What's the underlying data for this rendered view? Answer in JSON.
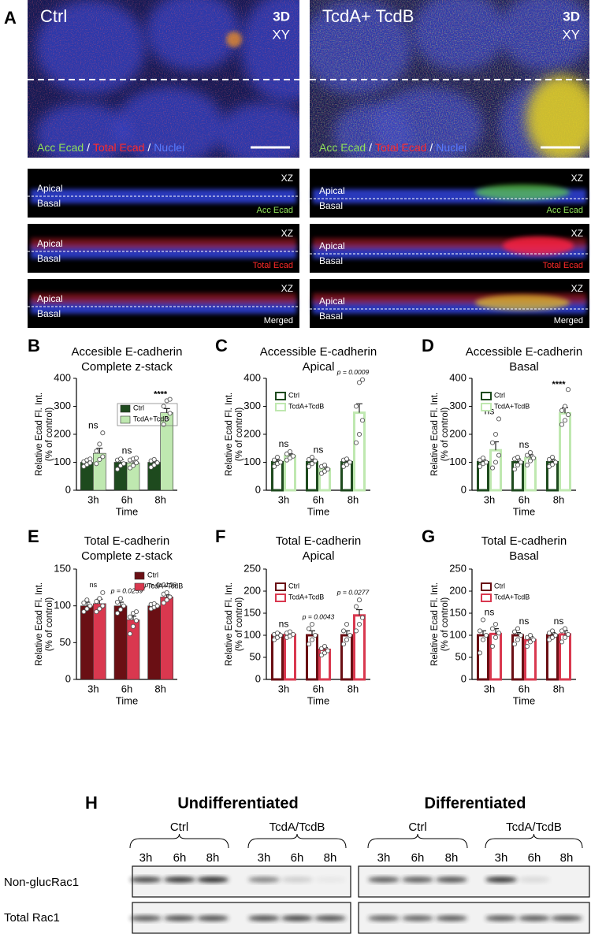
{
  "panel_a": {
    "label": "A",
    "images": [
      {
        "title": "Ctrl",
        "view": [
          "3D",
          "XY"
        ]
      },
      {
        "title": "TcdA+ TcdB",
        "view": [
          "3D",
          "XY"
        ]
      }
    ],
    "stains": [
      "Acc Ecad",
      "Total Ecad",
      "Nuclei"
    ],
    "separator": "/",
    "xz": {
      "view": "XZ",
      "apical": "Apical",
      "basal": "Basal",
      "channels": [
        "Acc Ecad",
        "Total Ecad",
        "Merged"
      ]
    }
  },
  "chart_data": [
    {
      "type": "bar",
      "panel": "B",
      "title": [
        "Accesible E-cadherin",
        "Complete z-stack"
      ],
      "ylabel": [
        "Relative Ecad Fl. Int.",
        "(% of control)"
      ],
      "xlabel": "Time",
      "categories": [
        "3h",
        "6h",
        "8h"
      ],
      "style": "filled",
      "legend": "center right",
      "series": [
        {
          "name": "Ctrl",
          "color": "#1e4a1e",
          "values": [
            100,
            100,
            100
          ],
          "errors": [
            5,
            10,
            6
          ],
          "points": [
            [
              85,
              92,
              98,
              102,
              108,
              112
            ],
            [
              75,
              88,
              95,
              108,
              112
            ],
            [
              82,
              90,
              98,
              105,
              110
            ]
          ]
        },
        {
          "name": "TcdA+TcdB",
          "color": "#bfe8b0",
          "values": [
            132,
            98,
            277
          ],
          "errors": [
            18,
            12,
            15
          ],
          "points": [
            [
              95,
              110,
              120,
              140,
              165,
              205
            ],
            [
              80,
              88,
              98,
              108,
              112,
              115
            ],
            [
              235,
              255,
              275,
              300,
              320,
              325
            ]
          ]
        }
      ],
      "ylim": [
        0,
        400
      ],
      "yticks": [
        0,
        100,
        200,
        300,
        400
      ],
      "annotations": [
        "ns",
        "ns",
        "****"
      ]
    },
    {
      "type": "bar",
      "panel": "C",
      "title": [
        "Accessible E-cadherin",
        "Apical"
      ],
      "ylabel": [
        "Relative Ecad Fl. Int.",
        "(% of control)"
      ],
      "xlabel": "Time",
      "categories": [
        "3h",
        "6h",
        "8h"
      ],
      "style": "outline",
      "legend": "upper left",
      "series": [
        {
          "name": "Ctrl",
          "color": "#1e4a1e",
          "values": [
            100,
            100,
            100
          ],
          "errors": [
            8,
            10,
            8
          ],
          "points": [
            [
              85,
              95,
              100,
              108,
              118
            ],
            [
              85,
              95,
              105,
              110,
              118
            ],
            [
              85,
              92,
              100,
              108,
              112
            ]
          ]
        },
        {
          "name": "TcdA+TcdB",
          "color": "#bfe8b0",
          "values": [
            122,
            75,
            277
          ],
          "errors": [
            8,
            8,
            32
          ],
          "points": [
            [
              108,
              115,
              122,
              130,
              138
            ],
            [
              60,
              68,
              75,
              85,
              90
            ],
            [
              170,
              200,
              250,
              300,
              385,
              395
            ]
          ]
        }
      ],
      "ylim": [
        0,
        400
      ],
      "yticks": [
        0,
        100,
        200,
        300,
        400
      ],
      "annotations": [
        "ns",
        "ns",
        "p = 0.0009"
      ]
    },
    {
      "type": "bar",
      "panel": "D",
      "title": [
        "Accessible E-cadherin",
        "Basal"
      ],
      "ylabel": [
        "Relative Ecad Fl. Int.",
        "(% of control)"
      ],
      "xlabel": "Time",
      "categories": [
        "3h",
        "6h",
        "8h"
      ],
      "style": "outline",
      "legend": "upper left",
      "series": [
        {
          "name": "Ctrl",
          "color": "#1e4a1e",
          "values": [
            100,
            100,
            100
          ],
          "errors": [
            8,
            12,
            10
          ],
          "points": [
            [
              85,
              95,
              100,
              108,
              115
            ],
            [
              75,
              90,
              100,
              112,
              118
            ],
            [
              85,
              92,
              100,
              110,
              118
            ]
          ]
        },
        {
          "name": "TcdA+TcdB",
          "color": "#bfe8b0",
          "values": [
            143,
            115,
            275
          ],
          "errors": [
            30,
            12,
            20
          ],
          "points": [
            [
              80,
              100,
              125,
              170,
              200,
              255
            ],
            [
              90,
              105,
              115,
              125,
              135
            ],
            [
              235,
              250,
              270,
              285,
              300,
              360
            ]
          ]
        }
      ],
      "ylim": [
        0,
        400
      ],
      "yticks": [
        0,
        100,
        200,
        300,
        400
      ],
      "annotations": [
        "ns",
        "ns",
        "****"
      ]
    },
    {
      "type": "bar",
      "panel": "E",
      "title": [
        "Total E-cadherin",
        "Complete z-stack"
      ],
      "ylabel": [
        "Relative Ecad Fl. Int.",
        "(% of control)"
      ],
      "xlabel": "Time",
      "categories": [
        "3h",
        "6h",
        "8h"
      ],
      "style": "filled",
      "legend": "upper right",
      "series": [
        {
          "name": "Ctrl",
          "color": "#6a0f14",
          "values": [
            100,
            100,
            100
          ],
          "errors": [
            5,
            5,
            3
          ],
          "points": [
            [
              92,
              96,
              100,
              104,
              108
            ],
            [
              90,
              95,
              100,
              105,
              110
            ],
            [
              96,
              98,
              100,
              102,
              103
            ]
          ]
        },
        {
          "name": "TcdA+TcdB",
          "color": "#d9384f",
          "values": [
            103,
            81,
            112
          ],
          "errors": [
            6,
            5,
            3
          ],
          "points": [
            [
              92,
              96,
              100,
              106,
              110,
              118
            ],
            [
              62,
              72,
              80,
              85,
              90,
              92
            ],
            [
              104,
              108,
              112,
              116,
              118
            ]
          ]
        }
      ],
      "ylim": [
        0,
        150
      ],
      "yticks": [
        0,
        50,
        100,
        150
      ],
      "annotations": [
        "ns",
        "p = 0.0259",
        "p = 0.0138"
      ]
    },
    {
      "type": "bar",
      "panel": "F",
      "title": [
        "Total E-cadherin",
        "Apical"
      ],
      "ylabel": [
        "Relative Ecad Fl. Int.",
        "(% of control)"
      ],
      "xlabel": "Time",
      "categories": [
        "3h",
        "6h",
        "8h"
      ],
      "style": "outline",
      "legend": "upper left",
      "series": [
        {
          "name": "Ctrl",
          "color": "#6a0f14",
          "values": [
            100,
            100,
            100
          ],
          "errors": [
            6,
            10,
            10
          ],
          "points": [
            [
              90,
              95,
              100,
              102,
              105
            ],
            [
              80,
              90,
              100,
              115,
              125
            ],
            [
              80,
              90,
              100,
              110,
              125
            ]
          ]
        },
        {
          "name": "TcdA+TcdB",
          "color": "#d9384f",
          "values": [
            101,
            67,
            145
          ],
          "errors": [
            5,
            5,
            13
          ],
          "points": [
            [
              95,
              98,
              102,
              105,
              108
            ],
            [
              55,
              60,
              65,
              70,
              75
            ],
            [
              110,
              125,
              140,
              165,
              180
            ]
          ]
        }
      ],
      "ylim": [
        0,
        250
      ],
      "yticks": [
        0,
        50,
        100,
        150,
        200,
        250
      ],
      "annotations": [
        "ns",
        "p = 0.0043",
        "p = 0.0277"
      ]
    },
    {
      "type": "bar",
      "panel": "G",
      "title": [
        "Total E-cadherin",
        "Basal"
      ],
      "ylabel": [
        "Relative Ecad Fl. Int.",
        "(% of control)"
      ],
      "xlabel": "Time",
      "categories": [
        "3h",
        "6h",
        "8h"
      ],
      "style": "outline",
      "legend": "upper left",
      "series": [
        {
          "name": "Ctrl",
          "color": "#6a0f14",
          "values": [
            100,
            100,
            100
          ],
          "errors": [
            10,
            6,
            6
          ],
          "points": [
            [
              60,
              90,
              100,
              110,
              135
            ],
            [
              80,
              90,
              100,
              108,
              115
            ],
            [
              90,
              95,
              100,
              105,
              110
            ]
          ]
        },
        {
          "name": "TcdA+TcdB",
          "color": "#d9384f",
          "values": [
            103,
            89,
            102
          ],
          "errors": [
            12,
            8,
            8
          ],
          "points": [
            [
              75,
              95,
              105,
              115,
              125
            ],
            [
              75,
              85,
              90,
              95,
              100
            ],
            [
              85,
              95,
              102,
              110,
              115
            ]
          ]
        }
      ],
      "ylim": [
        0,
        250
      ],
      "yticks": [
        0,
        50,
        100,
        150,
        200,
        250
      ],
      "annotations": [
        "ns",
        "ns",
        "ns"
      ]
    }
  ],
  "panel_h": {
    "label": "H",
    "groups": [
      {
        "title": "Undifferentiated",
        "conditions": [
          {
            "name": "Ctrl",
            "lanes": [
              "3h",
              "6h",
              "8h"
            ]
          },
          {
            "name": "TcdA/TcdB",
            "lanes": [
              "3h",
              "6h",
              "8h"
            ]
          }
        ]
      },
      {
        "title": "Differentiated",
        "conditions": [
          {
            "name": "Ctrl",
            "lanes": [
              "3h",
              "6h",
              "8h"
            ]
          },
          {
            "name": "TcdA/TcdB",
            "lanes": [
              "3h",
              "6h",
              "8h"
            ]
          }
        ]
      }
    ],
    "rows": [
      "Non-glucRac1",
      "Total Rac1"
    ]
  }
}
